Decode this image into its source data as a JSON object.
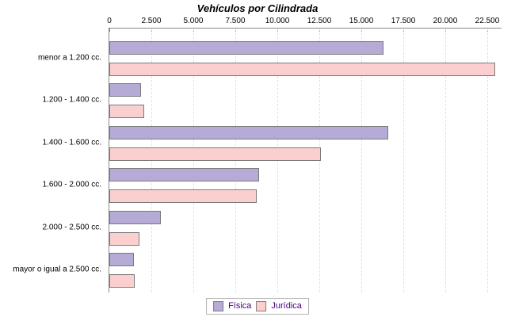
{
  "title": "Vehículos por Cilindrada",
  "colors": {
    "fisica_fill": "#b6aad6",
    "juridica_fill": "#fbcfcf",
    "bar_border": "#7a7a7a",
    "axis_line": "#8a8a8a",
    "gridline": "#e2e2e2",
    "text": "#000000",
    "legend_text": "#4b0082",
    "legend_border": "#b4b4b4"
  },
  "legend": {
    "items": [
      {
        "label": "Física"
      },
      {
        "label": "Jurídica"
      }
    ]
  },
  "chart_data": {
    "type": "bar",
    "orientation": "horizontal",
    "title": "Vehículos por Cilindrada",
    "categories": [
      "menor a 1.200 cc.",
      "1.200 - 1.400 cc.",
      "1.400 - 1.600 cc.",
      "1.600 - 2.000 cc.",
      "2.000 - 2.500 cc.",
      "mayor o igual a 2.500 cc."
    ],
    "series": [
      {
        "name": "Física",
        "color": "#b6aad6",
        "values": [
          16250,
          1800,
          16500,
          8800,
          2950,
          1350
        ]
      },
      {
        "name": "Jurídica",
        "color": "#fbcfcf",
        "values": [
          22900,
          2000,
          12500,
          8700,
          1700,
          1400
        ]
      }
    ],
    "x_ticks": [
      0,
      2500,
      5000,
      7500,
      10000,
      12500,
      15000,
      17500,
      20000,
      22500
    ],
    "x_tick_labels": [
      "0",
      "2.500",
      "5.000",
      "7.500",
      "10.000",
      "12.500",
      "15.000",
      "17.500",
      "20.000",
      "22.500"
    ],
    "xlim": [
      0,
      23350
    ],
    "grid": "dashed-vertical",
    "legend_position": "bottom",
    "axis_position": "top"
  }
}
